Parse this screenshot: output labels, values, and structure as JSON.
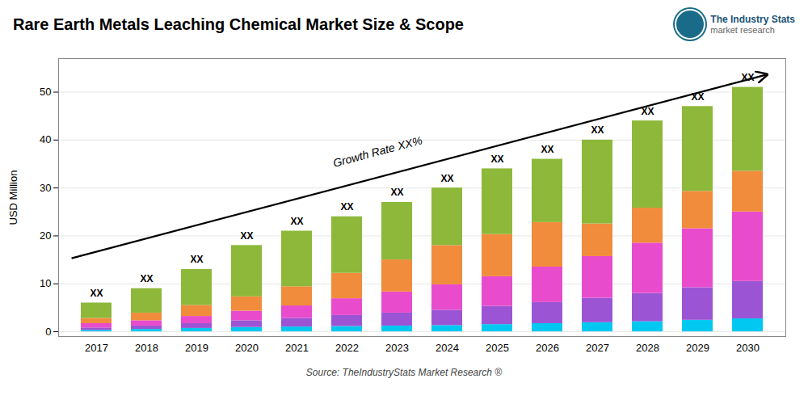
{
  "chart_data": {
    "type": "bar",
    "stacked": true,
    "title": "Rare Earth Metals Leaching Chemical Market Size & Scope",
    "ylabel": "USD Million",
    "caption": "Source: TheIndustryStats Market Research ®",
    "categories": [
      "2017",
      "2018",
      "2019",
      "2020",
      "2021",
      "2022",
      "2023",
      "2024",
      "2025",
      "2026",
      "2027",
      "2028",
      "2029",
      "2030"
    ],
    "series": [
      {
        "color": "#00c8f0",
        "values": [
          0.3,
          0.5,
          0.7,
          0.9,
          1.0,
          1.1,
          1.2,
          1.3,
          1.5,
          1.7,
          1.9,
          2.1,
          2.4,
          2.7
        ]
      },
      {
        "color": "#9b55d4",
        "values": [
          0.5,
          0.7,
          1.0,
          1.4,
          1.8,
          2.3,
          2.7,
          3.2,
          3.8,
          4.4,
          5.1,
          5.9,
          6.8,
          7.8
        ]
      },
      {
        "color": "#e84ccc",
        "values": [
          0.9,
          1.1,
          1.5,
          2.0,
          2.6,
          3.5,
          4.4,
          5.3,
          6.2,
          7.4,
          8.7,
          10.5,
          12.3,
          14.5
        ]
      },
      {
        "color": "#f08c3c",
        "values": [
          1.1,
          1.6,
          2.3,
          3.0,
          4.0,
          5.3,
          6.7,
          8.2,
          8.8,
          9.3,
          6.8,
          7.3,
          7.8,
          8.5
        ]
      },
      {
        "color": "#8db83a",
        "values": [
          3.2,
          5.1,
          7.5,
          10.7,
          11.6,
          11.8,
          12.0,
          12.0,
          13.7,
          13.2,
          17.5,
          18.2,
          17.7,
          17.5
        ]
      }
    ],
    "ylim": [
      -1,
      57
    ],
    "yticks": [
      0,
      10,
      20,
      30,
      40,
      50
    ],
    "grid": true,
    "annotations": [
      {
        "text": "XX",
        "x": "2017",
        "y": 6
      },
      {
        "text": "XX",
        "x": "2018",
        "y": 9
      },
      {
        "text": "XX",
        "x": "2019",
        "y": 13
      },
      {
        "text": "XX",
        "x": "2020",
        "y": 18
      },
      {
        "text": "XX",
        "x": "2021",
        "y": 21
      },
      {
        "text": "XX",
        "x": "2022",
        "y": 24
      },
      {
        "text": "XX",
        "x": "2023",
        "y": 27
      },
      {
        "text": "XX",
        "x": "2024",
        "y": 30
      },
      {
        "text": "XX",
        "x": "2025",
        "y": 34
      },
      {
        "text": "XX",
        "x": "2026",
        "y": 36
      },
      {
        "text": "XX",
        "x": "2027",
        "y": 40
      },
      {
        "text": "XX",
        "x": "2028",
        "y": 44
      },
      {
        "text": "XX",
        "x": "2029",
        "y": 47
      },
      {
        "text": "XX",
        "x": "2030",
        "y": 51
      },
      {
        "text": "Growth Rate XX%",
        "type": "arrow"
      },
      {
        "text": "The Industry Stats",
        "type": "logo"
      },
      {
        "text": "market research",
        "type": "logo"
      }
    ]
  }
}
